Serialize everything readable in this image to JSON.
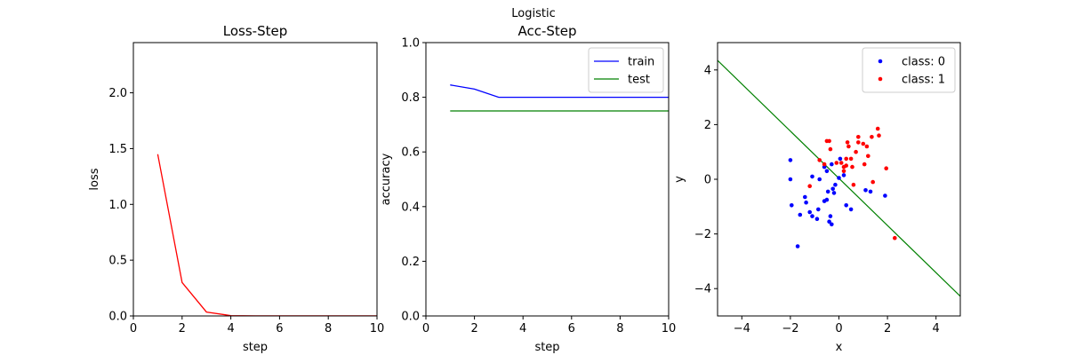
{
  "suptitle": "Logistic",
  "chart_data": [
    {
      "type": "line",
      "title": "Loss-Step",
      "xlabel": "step",
      "ylabel": "loss",
      "xlim": [
        0,
        10
      ],
      "ylim": [
        0,
        2.45
      ],
      "xticks": [
        "0",
        "2",
        "4",
        "6",
        "8",
        "10"
      ],
      "yticks": [
        "0.0",
        "0.5",
        "1.0",
        "1.5",
        "2.0"
      ],
      "series": [
        {
          "color": "#ff0000",
          "x": [
            1,
            2,
            3,
            4,
            5,
            6,
            7,
            8,
            9,
            10
          ],
          "y": [
            1.45,
            0.3,
            0.035,
            0.003,
            0.001,
            0.001,
            0.001,
            0.001,
            0.001,
            0.001
          ]
        }
      ]
    },
    {
      "type": "line",
      "title": "Acc-Step",
      "xlabel": "step",
      "ylabel": "accuracy",
      "xlim": [
        0,
        10
      ],
      "ylim": [
        0.0,
        1.0
      ],
      "xticks": [
        "0",
        "2",
        "4",
        "6",
        "8",
        "10"
      ],
      "yticks": [
        "0.0",
        "0.2",
        "0.4",
        "0.6",
        "0.8",
        "1.0"
      ],
      "legend": "top-right",
      "series": [
        {
          "name": "train",
          "color": "#0000ff",
          "x": [
            1,
            2,
            3,
            4,
            5,
            6,
            7,
            8,
            9,
            10
          ],
          "y": [
            0.845,
            0.83,
            0.8,
            0.8,
            0.8,
            0.8,
            0.8,
            0.8,
            0.8,
            0.8
          ]
        },
        {
          "name": "test",
          "color": "#008000",
          "x": [
            1,
            2,
            3,
            4,
            5,
            6,
            7,
            8,
            9,
            10
          ],
          "y": [
            0.75,
            0.75,
            0.75,
            0.75,
            0.75,
            0.75,
            0.75,
            0.75,
            0.75,
            0.75
          ]
        }
      ]
    },
    {
      "type": "scatter",
      "xlabel": "x",
      "ylabel": "y",
      "xlim": [
        -5,
        5
      ],
      "ylim": [
        -5,
        5
      ],
      "xticks": [
        "−4",
        "−2",
        "0",
        "2",
        "4"
      ],
      "yticks": [
        "−4",
        "−2",
        "0",
        "2",
        "4"
      ],
      "legend": "top-right",
      "series": [
        {
          "name": "class: 0",
          "color": "#0000ff",
          "points": [
            [
              -2.0,
              0.7
            ],
            [
              -2.0,
              0.0
            ],
            [
              -1.95,
              -0.95
            ],
            [
              -1.6,
              -1.3
            ],
            [
              -1.7,
              -2.45
            ],
            [
              -1.4,
              -0.65
            ],
            [
              -1.35,
              -0.85
            ],
            [
              -1.2,
              -1.2
            ],
            [
              -1.1,
              -1.35
            ],
            [
              -0.9,
              -1.45
            ],
            [
              -0.85,
              -1.1
            ],
            [
              -0.6,
              -0.8
            ],
            [
              -0.5,
              -0.75
            ],
            [
              -0.4,
              -1.55
            ],
            [
              -0.35,
              -1.35
            ],
            [
              -0.3,
              -1.65
            ],
            [
              -0.45,
              -0.45
            ],
            [
              -0.25,
              -0.35
            ],
            [
              -0.15,
              -0.2
            ],
            [
              0.0,
              0.05
            ],
            [
              0.2,
              0.15
            ],
            [
              0.3,
              -0.95
            ],
            [
              0.5,
              -1.1
            ],
            [
              -0.8,
              0.0
            ],
            [
              -0.5,
              0.3
            ],
            [
              -0.3,
              0.55
            ],
            [
              0.05,
              0.75
            ],
            [
              1.1,
              -0.4
            ],
            [
              1.3,
              -0.45
            ],
            [
              1.9,
              -0.6
            ],
            [
              -0.6,
              0.45
            ],
            [
              -0.2,
              -0.5
            ],
            [
              -1.1,
              0.1
            ]
          ]
        },
        {
          "name": "class: 1",
          "color": "#ff0000",
          "points": [
            [
              -1.2,
              -0.25
            ],
            [
              -0.8,
              0.7
            ],
            [
              -0.6,
              0.55
            ],
            [
              -0.5,
              1.4
            ],
            [
              -0.4,
              1.4
            ],
            [
              -0.35,
              1.1
            ],
            [
              -0.1,
              0.6
            ],
            [
              0.1,
              0.6
            ],
            [
              0.2,
              0.3
            ],
            [
              0.3,
              0.5
            ],
            [
              0.3,
              0.75
            ],
            [
              0.35,
              1.35
            ],
            [
              0.4,
              1.2
            ],
            [
              0.5,
              0.75
            ],
            [
              0.55,
              0.45
            ],
            [
              0.7,
              1.0
            ],
            [
              0.8,
              1.55
            ],
            [
              0.8,
              1.35
            ],
            [
              1.0,
              1.3
            ],
            [
              1.05,
              0.55
            ],
            [
              1.15,
              1.2
            ],
            [
              1.2,
              0.85
            ],
            [
              1.35,
              1.55
            ],
            [
              1.4,
              -0.1
            ],
            [
              1.6,
              1.85
            ],
            [
              1.65,
              1.6
            ],
            [
              1.95,
              0.4
            ],
            [
              2.3,
              -2.15
            ],
            [
              0.6,
              -0.2
            ],
            [
              0.2,
              0.45
            ]
          ]
        }
      ],
      "line": {
        "color": "#008000",
        "x": [
          -5,
          5
        ],
        "y": [
          4.35,
          -4.28
        ]
      }
    }
  ]
}
